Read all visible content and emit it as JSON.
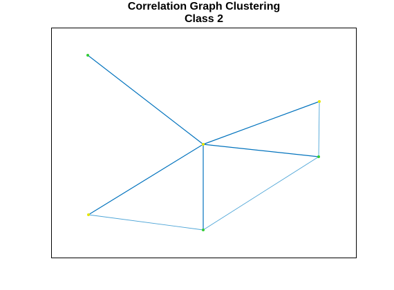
{
  "figure": {
    "title": "Correlation Graph Clustering",
    "subtitle": "Class 2"
  },
  "colors": {
    "frame": "#000000",
    "edge_strong": "#0072bd",
    "edge_light": "#4aa3d6",
    "node_green": "#33cc33",
    "node_yellow": "#e6e600"
  },
  "graph": {
    "nodes": [
      {
        "id": "n1",
        "color": "green"
      },
      {
        "id": "n2",
        "color": "yellow"
      },
      {
        "id": "n3",
        "color": "yellow"
      },
      {
        "id": "n4",
        "color": "green"
      },
      {
        "id": "n5",
        "color": "yellow"
      },
      {
        "id": "n6",
        "color": "green"
      }
    ],
    "edges": [
      {
        "from": "n1",
        "to": "n2",
        "weight": "strong"
      },
      {
        "from": "n2",
        "to": "n3",
        "weight": "strong"
      },
      {
        "from": "n2",
        "to": "n4",
        "weight": "strong"
      },
      {
        "from": "n2",
        "to": "n5",
        "weight": "strong"
      },
      {
        "from": "n2",
        "to": "n6",
        "weight": "strong"
      },
      {
        "from": "n3",
        "to": "n4",
        "weight": "light"
      },
      {
        "from": "n5",
        "to": "n6",
        "weight": "light"
      },
      {
        "from": "n4",
        "to": "n6",
        "weight": "light"
      }
    ]
  }
}
